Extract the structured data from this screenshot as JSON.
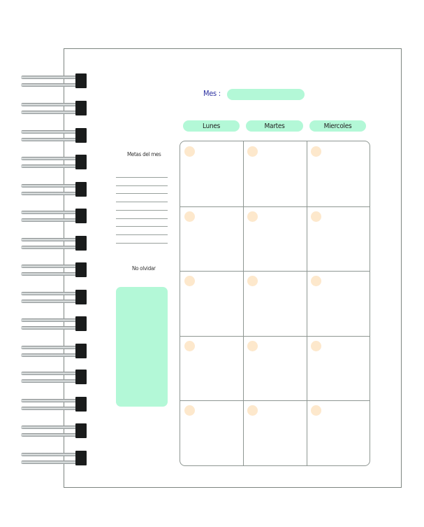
{
  "header": {
    "month_label": "Mes :",
    "month_value": ""
  },
  "days": [
    "Lunes",
    "Martes",
    "Miercoles"
  ],
  "sidebar": {
    "goals_title": "Metas del mes",
    "reminder_title": "No olvidar"
  },
  "colors": {
    "accent_pill": "#b3f8d7",
    "day_dot": "#fde8cc",
    "month_label": "#2a2fa0",
    "binding": "#1a1c1c"
  },
  "grid": {
    "rows": 5,
    "columns": 3
  }
}
